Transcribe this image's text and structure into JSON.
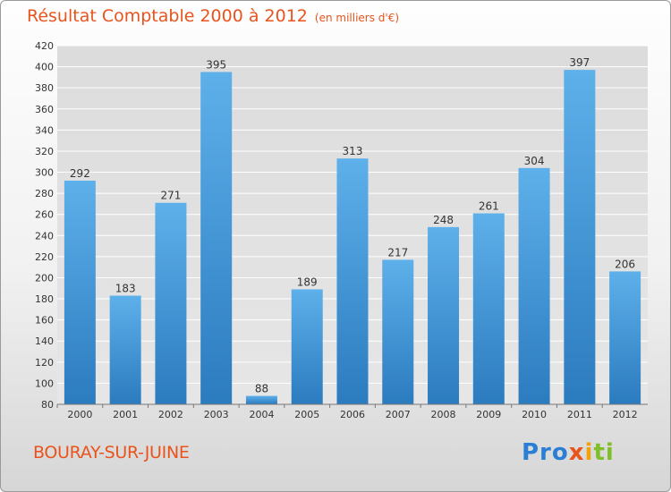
{
  "chart_data": {
    "type": "bar",
    "title": "Résultat Comptable 2000 à 2012",
    "subtitle": "(en milliers d'€)",
    "categories": [
      "2000",
      "2001",
      "2002",
      "2003",
      "2004",
      "2005",
      "2006",
      "2007",
      "2008",
      "2009",
      "2010",
      "2011",
      "2012"
    ],
    "values": [
      292,
      183,
      271,
      395,
      88,
      189,
      313,
      217,
      248,
      261,
      304,
      397,
      206
    ],
    "ylim": [
      80,
      420
    ],
    "yticks": [
      80,
      100,
      120,
      140,
      160,
      180,
      200,
      220,
      240,
      260,
      280,
      300,
      320,
      340,
      360,
      380,
      400,
      420
    ],
    "grid": true,
    "xlabel": "",
    "ylabel": ""
  },
  "footer": {
    "city": "BOURAY-SUR-JUINE",
    "logo": {
      "p1": "Pro",
      "p2": "x",
      "p3": "i",
      "p4": "ti"
    }
  },
  "colors": {
    "bar_top": "#5eb0ea",
    "bar_bottom": "#2b7bbf",
    "accent": "#e8541c"
  }
}
